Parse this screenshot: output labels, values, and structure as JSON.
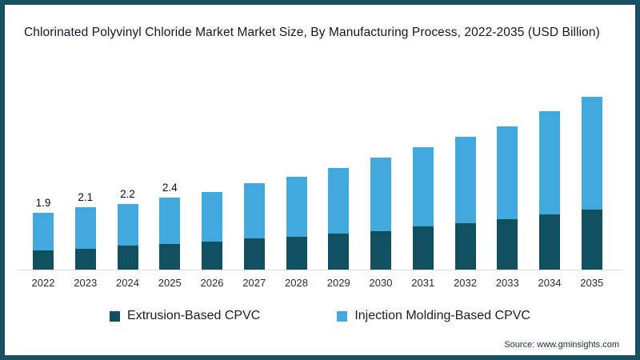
{
  "title": "Chlorinated Polyvinyl Chloride Market Market Size, By Manufacturing Process, 2022-2035 (USD Billion)",
  "source": "Source: www.gminsights.com",
  "colors": {
    "extrusion": "#105061",
    "injection": "#42a9de",
    "frame_border": "#175063",
    "axis_line": "#dcdcd7",
    "title_text": "#15152b",
    "label_text": "#0d0d0d"
  },
  "legend": {
    "items": [
      {
        "label": "Extrusion-Based CPVC",
        "color_key": "extrusion"
      },
      {
        "label": "Injection Molding-Based CPVC",
        "color_key": "injection"
      }
    ]
  },
  "chart_data": {
    "type": "bar",
    "stacked": true,
    "title": "Chlorinated Polyvinyl Chloride Market Market Size, By Manufacturing Process, 2022-2035 (USD Billion)",
    "categories": [
      "2022",
      "2023",
      "2024",
      "2025",
      "2026",
      "2027",
      "2028",
      "2029",
      "2030",
      "2031",
      "2032",
      "2033",
      "2034",
      "2035"
    ],
    "series": [
      {
        "name": "Extrusion-Based CPVC",
        "values": [
          0.65,
          0.7,
          0.8,
          0.85,
          0.95,
          1.05,
          1.1,
          1.2,
          1.3,
          1.45,
          1.55,
          1.7,
          1.85,
          2.0
        ]
      },
      {
        "name": "Injection Molding-Based CPVC",
        "values": [
          1.25,
          1.4,
          1.4,
          1.55,
          1.65,
          1.85,
          2.0,
          2.2,
          2.45,
          2.65,
          2.9,
          3.1,
          3.45,
          3.8
        ]
      }
    ],
    "totals": [
      1.9,
      2.1,
      2.2,
      2.4,
      2.6,
      2.9,
      3.1,
      3.4,
      3.75,
      4.1,
      4.45,
      4.8,
      5.3,
      5.8
    ],
    "data_labels": [
      "1.9",
      "2.1",
      "2.2",
      "2.4",
      "",
      "",
      "",
      "",
      "",
      "",
      "",
      "",
      "",
      ""
    ],
    "xlabel": "",
    "ylabel": "",
    "ylim": [
      0,
      6
    ],
    "grid": false,
    "legend_position": "bottom"
  }
}
